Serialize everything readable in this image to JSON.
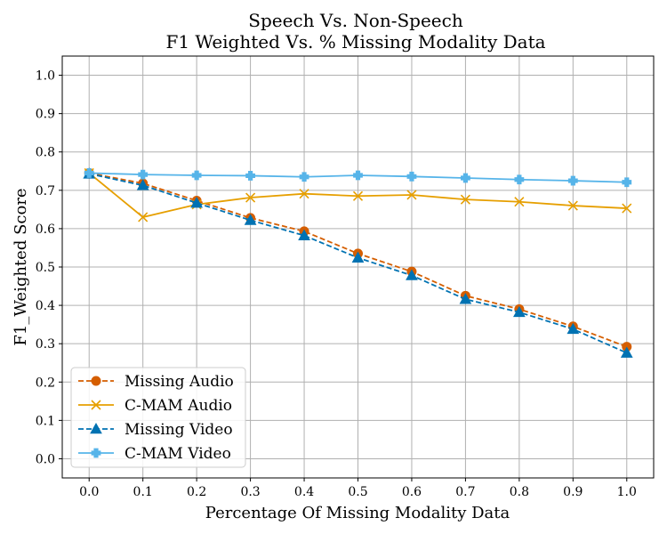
{
  "chart_data": {
    "type": "line",
    "title": "Speech Vs. Non-Speech",
    "subtitle": "F1 Weighted Vs. % Missing Modality Data",
    "xlabel": "Percentage Of Missing Modality Data",
    "ylabel": "F1_Weighted Score",
    "x": [
      0.0,
      0.1,
      0.2,
      0.3,
      0.4,
      0.5,
      0.6,
      0.7,
      0.8,
      0.9,
      1.0
    ],
    "xticks": [
      "0.0",
      "0.1",
      "0.2",
      "0.3",
      "0.4",
      "0.5",
      "0.6",
      "0.7",
      "0.8",
      "0.9",
      "1.0"
    ],
    "yticks": [
      "0.0",
      "0.1",
      "0.2",
      "0.3",
      "0.4",
      "0.5",
      "0.6",
      "0.7",
      "0.8",
      "0.9",
      "1.0"
    ],
    "xlim": [
      -0.05,
      1.05
    ],
    "ylim": [
      -0.05,
      1.05
    ],
    "grid": true,
    "legend_position": "lower-left",
    "series": [
      {
        "name": "Missing Audio",
        "color": "#D55E00",
        "linestyle": "dashed",
        "marker": "circle",
        "values": [
          0.745,
          0.718,
          0.673,
          0.628,
          0.593,
          0.535,
          0.488,
          0.425,
          0.39,
          0.345,
          0.292
        ]
      },
      {
        "name": "C-MAM Audio",
        "color": "#E69F00",
        "linestyle": "solid",
        "marker": "x",
        "values": [
          0.745,
          0.63,
          0.663,
          0.681,
          0.691,
          0.685,
          0.688,
          0.676,
          0.67,
          0.66,
          0.653
        ]
      },
      {
        "name": "Missing Video",
        "color": "#0072B2",
        "linestyle": "dashed",
        "marker": "triangle",
        "values": [
          0.743,
          0.713,
          0.667,
          0.622,
          0.582,
          0.524,
          0.478,
          0.416,
          0.382,
          0.338,
          0.276
        ]
      },
      {
        "name": "C-MAM Video",
        "color": "#56B4E9",
        "linestyle": "solid",
        "marker": "plus",
        "values": [
          0.745,
          0.741,
          0.739,
          0.738,
          0.735,
          0.739,
          0.736,
          0.732,
          0.728,
          0.725,
          0.721
        ]
      }
    ]
  }
}
